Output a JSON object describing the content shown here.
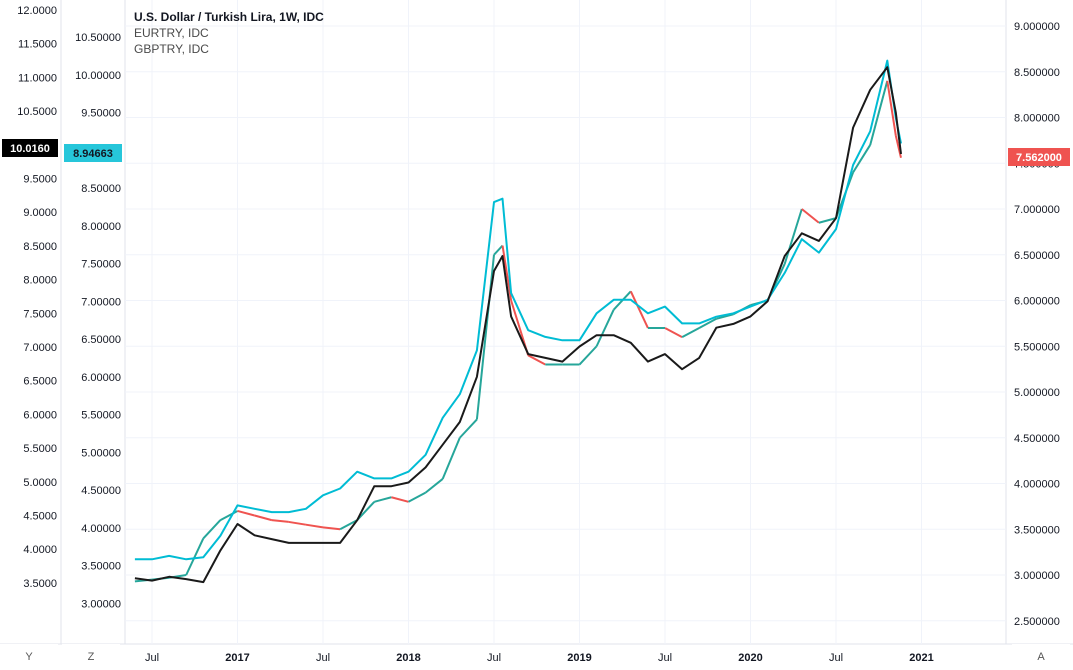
{
  "chart_data": {
    "type": "line",
    "legend": {
      "title": "U.S. Dollar / Turkish Lira, 1W, IDC",
      "series2": "EURTRY, IDC",
      "series3": "GBPTRY, IDC"
    },
    "time_ticks": [
      "Jul",
      "2017",
      "Jul",
      "2018",
      "Jul",
      "2019",
      "Jul",
      "2020",
      "Jul",
      "2021"
    ],
    "left_outer_axis": {
      "ticks": [
        "12.0000",
        "11.5000",
        "11.0000",
        "10.5000",
        "10.0000",
        "9.5000",
        "9.0000",
        "8.5000",
        "8.0000",
        "7.5000",
        "7.0000",
        "6.5000",
        "6.0000",
        "5.5000",
        "5.0000",
        "4.5000",
        "4.0000",
        "3.5000"
      ],
      "values": [
        12.0,
        11.5,
        11.0,
        10.5,
        10.0,
        9.5,
        9.0,
        8.5,
        8.0,
        7.5,
        7.0,
        6.5,
        6.0,
        5.5,
        5.0,
        4.5,
        4.0,
        3.5
      ],
      "last_value": "10.0160",
      "series": "GBPTRY, IDC"
    },
    "left_inner_axis": {
      "ticks": [
        "10.50000",
        "10.00000",
        "9.50000",
        "9.00000",
        "8.50000",
        "8.00000",
        "7.50000",
        "7.00000",
        "6.50000",
        "6.00000",
        "5.50000",
        "5.00000",
        "4.50000",
        "4.00000",
        "3.50000",
        "3.00000"
      ],
      "values": [
        10.5,
        10.0,
        9.5,
        9.0,
        8.5,
        8.0,
        7.5,
        7.0,
        6.5,
        6.0,
        5.5,
        5.0,
        4.5,
        4.0,
        3.5,
        3.0
      ],
      "last_value": "8.94663",
      "series": "EURTRY, IDC"
    },
    "right_axis": {
      "ticks": [
        "9.000000",
        "8.500000",
        "8.000000",
        "7.500000",
        "7.000000",
        "6.500000",
        "6.000000",
        "5.500000",
        "5.000000",
        "4.500000",
        "4.000000",
        "3.500000",
        "3.000000",
        "2.500000"
      ],
      "values": [
        9.0,
        8.5,
        8.0,
        7.5,
        7.0,
        6.5,
        6.0,
        5.5,
        5.0,
        4.5,
        4.0,
        3.5,
        3.0,
        2.5
      ],
      "last_value": "7.562000",
      "series": "U.S. Dollar / Turkish Lira, 1W, IDC"
    },
    "x": [
      2016.4,
      2016.5,
      2016.6,
      2016.7,
      2016.8,
      2016.9,
      2017.0,
      2017.1,
      2017.2,
      2017.3,
      2017.4,
      2017.5,
      2017.6,
      2017.7,
      2017.8,
      2017.9,
      2018.0,
      2018.1,
      2018.2,
      2018.3,
      2018.4,
      2018.5,
      2018.55,
      2018.6,
      2018.7,
      2018.8,
      2018.9,
      2019.0,
      2019.1,
      2019.2,
      2019.3,
      2019.4,
      2019.5,
      2019.6,
      2019.7,
      2019.8,
      2019.9,
      2020.0,
      2020.1,
      2020.2,
      2020.3,
      2020.4,
      2020.5,
      2020.6,
      2020.7,
      2020.8,
      2020.85,
      2020.88
    ],
    "series": [
      {
        "name": "U.S. Dollar / Turkish Lira, 1W, IDC",
        "axis": "right",
        "color_up": "#26a69a",
        "color_down": "#ef5350",
        "values": [
          2.93,
          2.95,
          2.97,
          3.0,
          3.4,
          3.6,
          3.7,
          3.65,
          3.6,
          3.58,
          3.55,
          3.52,
          3.5,
          3.6,
          3.8,
          3.85,
          3.8,
          3.9,
          4.05,
          4.5,
          4.7,
          6.5,
          6.6,
          6.0,
          5.4,
          5.3,
          5.3,
          5.3,
          5.5,
          5.9,
          6.1,
          5.7,
          5.7,
          5.6,
          5.7,
          5.8,
          5.85,
          5.95,
          6.0,
          6.4,
          7.0,
          6.85,
          6.9,
          7.4,
          7.7,
          8.4,
          7.8,
          7.56
        ]
      },
      {
        "name": "EURTRY, IDC",
        "axis": "left-inner",
        "color": "#1a1a1a",
        "values": [
          3.33,
          3.3,
          3.35,
          3.32,
          3.28,
          3.7,
          4.05,
          3.9,
          3.85,
          3.8,
          3.8,
          3.8,
          3.8,
          4.1,
          4.55,
          4.55,
          4.6,
          4.8,
          5.1,
          5.4,
          6.0,
          7.4,
          7.6,
          6.8,
          6.3,
          6.25,
          6.2,
          6.4,
          6.55,
          6.55,
          6.45,
          6.2,
          6.3,
          6.1,
          6.25,
          6.65,
          6.7,
          6.8,
          7.0,
          7.6,
          7.9,
          7.8,
          8.1,
          9.3,
          9.8,
          10.1,
          9.5,
          8.95
        ]
      },
      {
        "name": "GBPTRY, IDC",
        "axis": "left-outer",
        "color": "#00bcd4",
        "values": [
          3.85,
          3.85,
          3.9,
          3.85,
          3.88,
          4.2,
          4.65,
          4.6,
          4.55,
          4.55,
          4.6,
          4.8,
          4.9,
          5.15,
          5.05,
          5.05,
          5.15,
          5.4,
          5.95,
          6.3,
          6.95,
          9.15,
          9.2,
          7.8,
          7.25,
          7.15,
          7.1,
          7.1,
          7.5,
          7.7,
          7.7,
          7.5,
          7.6,
          7.35,
          7.35,
          7.45,
          7.5,
          7.6,
          7.7,
          8.1,
          8.6,
          8.4,
          8.75,
          9.7,
          10.2,
          11.25,
          10.4,
          10.02
        ]
      }
    ]
  },
  "ui": {
    "bottom_left_y": "Y",
    "bottom_left_z": "Z",
    "bottom_right_a": "A"
  }
}
